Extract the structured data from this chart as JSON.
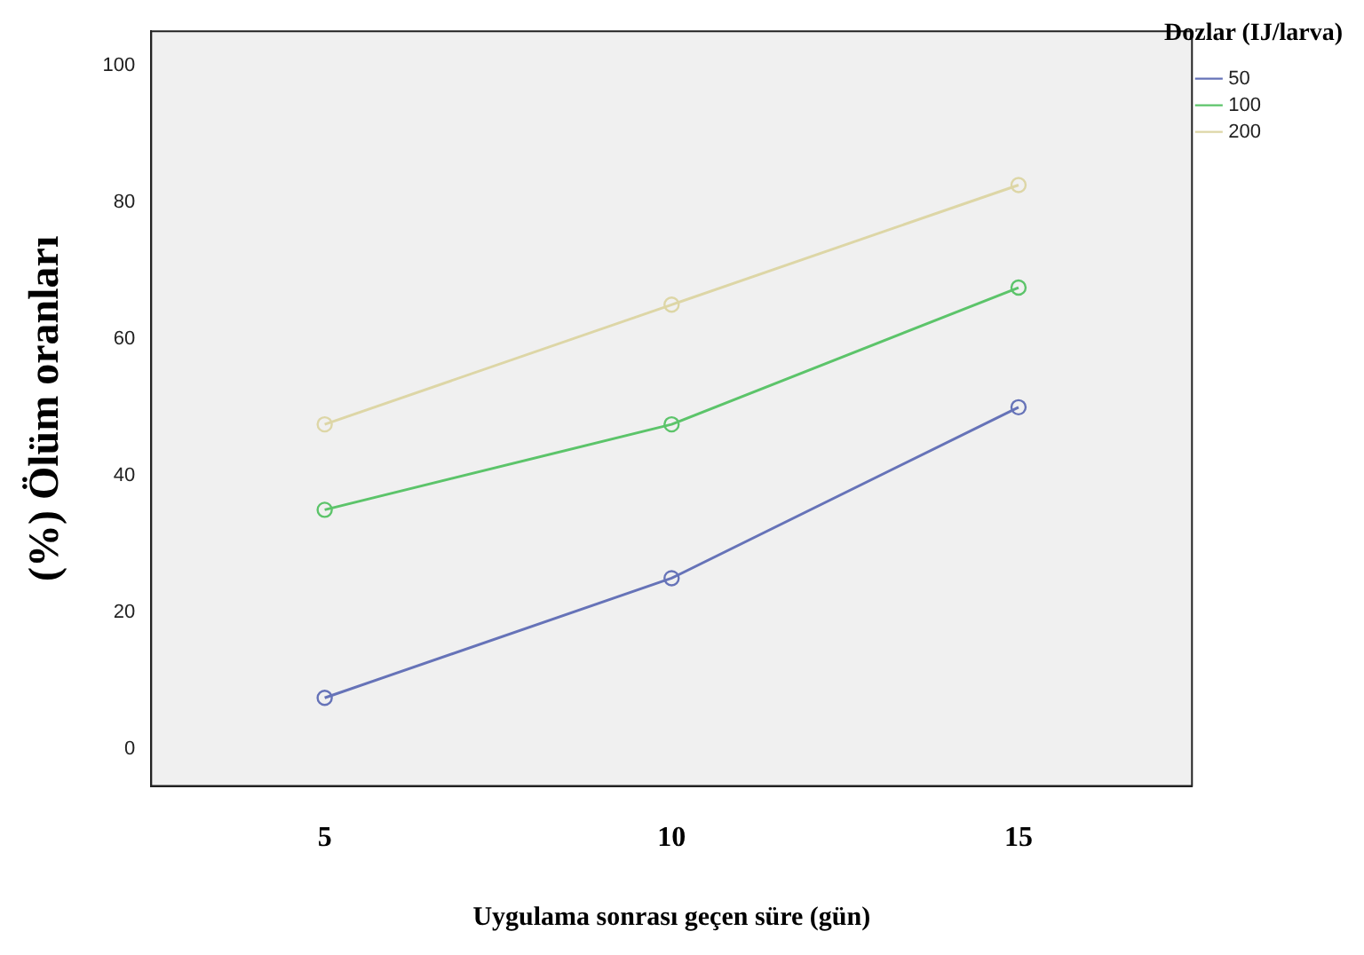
{
  "chart_data": {
    "type": "line",
    "xlabel": "Uygulama sonrası geçen süre (gün)",
    "ylabel": "(%) Ölüm oranları",
    "legend_title": "Dozlar (IJ/larva)",
    "categories": [
      "5",
      "10",
      "15"
    ],
    "series": [
      {
        "name": "50",
        "color": "#6673b8",
        "values": [
          7.5,
          25,
          50
        ]
      },
      {
        "name": "100",
        "color": "#5cc46a",
        "values": [
          35,
          47.5,
          67.5
        ]
      },
      {
        "name": "200",
        "color": "#ddd6a6",
        "values": [
          47.5,
          65,
          82.5
        ]
      }
    ],
    "ylim": [
      -5.4,
      105
    ],
    "yticks": [
      0,
      20,
      40,
      60,
      80,
      100
    ],
    "grid": false,
    "legend": "top right",
    "marker": "circle",
    "line_style": "solid"
  }
}
